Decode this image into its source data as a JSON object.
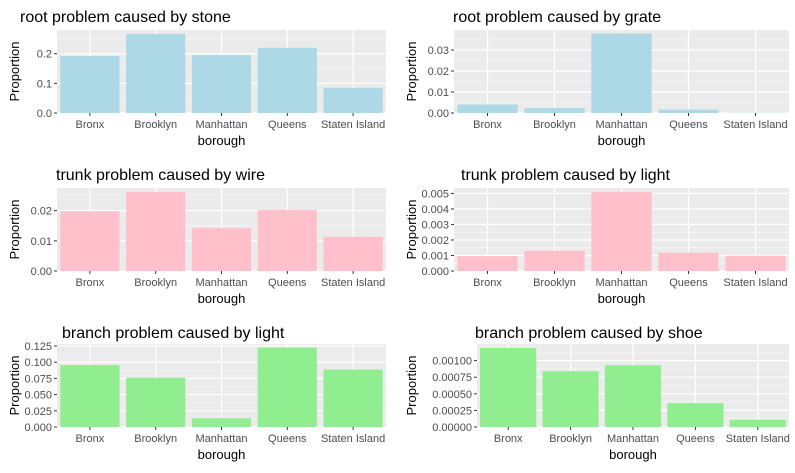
{
  "chart_data": [
    {
      "type": "bar",
      "title": "root problem caused by stone",
      "xlabel": "borough",
      "ylabel": "Proportion",
      "categories": [
        "Bronx",
        "Brooklyn",
        "Manhattan",
        "Queens",
        "Staten Island"
      ],
      "values": [
        0.192,
        0.267,
        0.195,
        0.22,
        0.085
      ],
      "ylim": [
        0,
        0.28
      ],
      "yticks": [
        0.0,
        0.1,
        0.2
      ],
      "ytick_labels": [
        "0.0",
        "0.1",
        "0.2"
      ],
      "fill": "#add8e6"
    },
    {
      "type": "bar",
      "title": "root problem caused by grate",
      "xlabel": "borough",
      "ylabel": "Proportion",
      "categories": [
        "Bronx",
        "Brooklyn",
        "Manhattan",
        "Queens",
        "Staten Island"
      ],
      "values": [
        0.004,
        0.0023,
        0.0378,
        0.0016,
        0.0001
      ],
      "ylim": [
        0,
        0.0395
      ],
      "yticks": [
        0.0,
        0.01,
        0.02,
        0.03
      ],
      "ytick_labels": [
        "0.00",
        "0.01",
        "0.02",
        "0.03"
      ],
      "fill": "#add8e6"
    },
    {
      "type": "bar",
      "title": "trunk problem caused by wire",
      "xlabel": "borough",
      "ylabel": "Proportion",
      "categories": [
        "Bronx",
        "Brooklyn",
        "Manhattan",
        "Queens",
        "Staten Island"
      ],
      "values": [
        0.0198,
        0.0262,
        0.0142,
        0.0202,
        0.0113
      ],
      "ylim": [
        0,
        0.0275
      ],
      "yticks": [
        0.0,
        0.01,
        0.02
      ],
      "ytick_labels": [
        "0.00",
        "0.01",
        "0.02"
      ],
      "fill": "#ffc0cb"
    },
    {
      "type": "bar",
      "title": "trunk problem caused by light",
      "xlabel": "borough",
      "ylabel": "Proportion",
      "categories": [
        "Bronx",
        "Brooklyn",
        "Manhattan",
        "Queens",
        "Staten Island"
      ],
      "values": [
        0.00096,
        0.0013,
        0.0051,
        0.00118,
        0.00098
      ],
      "ylim": [
        0,
        0.00535
      ],
      "yticks": [
        0.0,
        0.001,
        0.002,
        0.003,
        0.004,
        0.005
      ],
      "ytick_labels": [
        "0.000",
        "0.001",
        "0.002",
        "0.003",
        "0.004",
        "0.005"
      ],
      "fill": "#ffc0cb"
    },
    {
      "type": "bar",
      "title": "branch problem caused by light",
      "xlabel": "borough",
      "ylabel": "Proportion",
      "categories": [
        "Bronx",
        "Brooklyn",
        "Manhattan",
        "Queens",
        "Staten Island"
      ],
      "values": [
        0.0955,
        0.076,
        0.0135,
        0.1225,
        0.0885
      ],
      "ylim": [
        0,
        0.128
      ],
      "yticks": [
        0.0,
        0.025,
        0.05,
        0.075,
        0.1,
        0.125
      ],
      "ytick_labels": [
        "0.000",
        "0.025",
        "0.050",
        "0.075",
        "0.100",
        "0.125"
      ],
      "fill": "#90ee90"
    },
    {
      "type": "bar",
      "title": "branch problem caused by shoe",
      "xlabel": "borough",
      "ylabel": "Proportion",
      "categories": [
        "Bronx",
        "Brooklyn",
        "Manhattan",
        "Queens",
        "Staten Island"
      ],
      "values": [
        0.00119,
        0.00084,
        0.00093,
        0.00036,
        0.00011
      ],
      "ylim": [
        0,
        0.00125
      ],
      "yticks": [
        0.0,
        0.00025,
        0.0005,
        0.00075,
        0.001
      ],
      "ytick_labels": [
        "0.00000",
        "0.00025",
        "0.00050",
        "0.00075",
        "0.00100"
      ],
      "fill": "#90ee90"
    }
  ]
}
